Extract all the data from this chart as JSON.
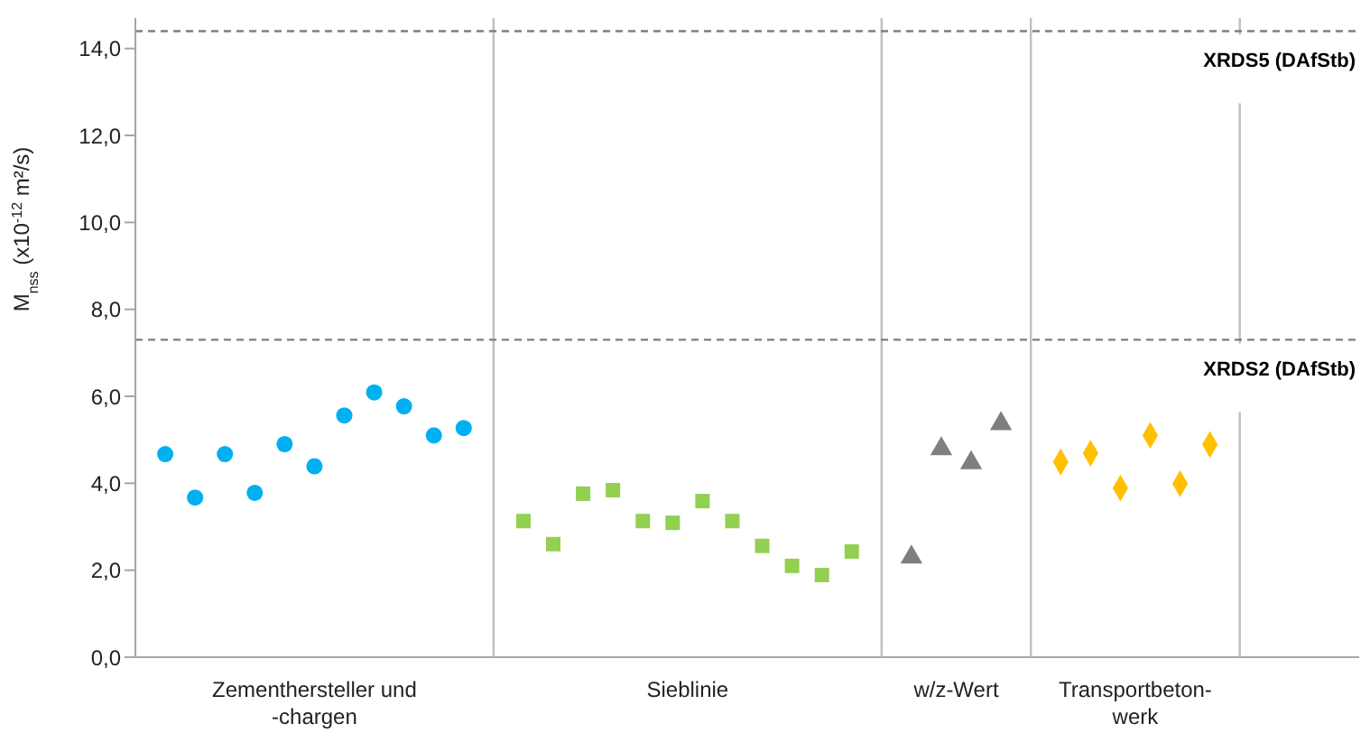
{
  "chart_data": {
    "type": "scatter",
    "ylabel": "M$_{nss}$ (x10$^{-12}$ m²/s)",
    "categories": [
      null,
      null,
      null,
      null,
      null,
      null,
      null,
      null,
      null,
      null,
      "Zementhersteller und\n-chargen",
      null,
      null,
      null,
      null,
      null,
      null,
      null,
      null,
      null,
      null,
      null,
      null,
      null,
      null,
      null,
      null,
      null,
      null,
      null,
      null,
      null,
      null,
      null,
      null,
      "Sieblinie",
      null,
      null,
      null,
      null,
      null,
      null,
      null,
      null,
      null,
      null,
      null,
      null,
      null,
      null,
      null,
      null,
      null,
      "w/z-Wert",
      null,
      null,
      null,
      null,
      null,
      null,
      null,
      null,
      null,
      null,
      null,
      "Transportbeton-\nwerk",
      null,
      null,
      null,
      null,
      null,
      null,
      null,
      null,
      null,
      null,
      null,
      null,
      null
    ],
    "ylim": [
      0,
      14.7
    ],
    "yticks": [
      {
        "value": 0,
        "label": "0,0"
      },
      {
        "value": 2,
        "label": "2,0"
      },
      {
        "value": 4,
        "label": "4,0"
      },
      {
        "value": 6,
        "label": "6,0"
      },
      {
        "value": 8,
        "label": "8,0"
      },
      {
        "value": 10,
        "label": "10,0"
      },
      {
        "value": 12,
        "label": "12,0"
      },
      {
        "value": 14,
        "label": "14,0"
      }
    ],
    "series": [
      {
        "color": "#00b0f0",
        "marker": "circle",
        "values": [
          4.67,
          null,
          3.67,
          null,
          4.67,
          null,
          3.78,
          null,
          4.9,
          null,
          4.39,
          null,
          5.56,
          null,
          6.09,
          null,
          5.77,
          null,
          5.1,
          null,
          5.27,
          null,
          null,
          null,
          null,
          null,
          null,
          null,
          null,
          null,
          null,
          null,
          null,
          null,
          null,
          null,
          null,
          null,
          null,
          null,
          null,
          null,
          null,
          null,
          null,
          null,
          null,
          null,
          null,
          null,
          null,
          null,
          null,
          null,
          null,
          null,
          null,
          null,
          null,
          null,
          null,
          null,
          null,
          null,
          null,
          null,
          null,
          null,
          null,
          null,
          null,
          null,
          null,
          null,
          null,
          null,
          null,
          null,
          null
        ]
      },
      {
        "color": "#92d050",
        "marker": "square",
        "values": [
          null,
          null,
          null,
          null,
          null,
          null,
          null,
          null,
          null,
          null,
          null,
          null,
          null,
          null,
          null,
          null,
          null,
          null,
          null,
          null,
          null,
          null,
          null,
          null,
          3.13,
          null,
          2.6,
          null,
          3.76,
          null,
          3.84,
          null,
          3.13,
          null,
          3.09,
          null,
          3.59,
          null,
          3.13,
          null,
          2.56,
          null,
          2.1,
          null,
          1.89,
          null,
          2.43,
          null,
          null,
          null,
          null,
          null,
          null,
          null,
          null,
          null,
          null,
          null,
          null,
          null,
          null,
          null,
          null,
          null,
          null,
          null,
          null,
          null,
          null,
          null,
          null,
          null,
          null,
          null,
          null,
          null,
          null,
          null,
          null
        ]
      },
      {
        "color": "#7f7f7f",
        "marker": "triangle",
        "values": [
          null,
          null,
          null,
          null,
          null,
          null,
          null,
          null,
          null,
          null,
          null,
          null,
          null,
          null,
          null,
          null,
          null,
          null,
          null,
          null,
          null,
          null,
          null,
          null,
          null,
          null,
          null,
          null,
          null,
          null,
          null,
          null,
          null,
          null,
          null,
          null,
          null,
          null,
          null,
          null,
          null,
          null,
          null,
          null,
          null,
          null,
          null,
          null,
          null,
          null,
          2.3,
          null,
          4.79,
          null,
          4.47,
          null,
          5.37,
          null,
          null,
          null,
          null,
          null,
          null,
          null,
          null,
          null,
          null,
          null,
          null,
          null,
          null,
          null,
          null,
          null,
          null,
          null,
          null,
          null,
          null
        ]
      },
      {
        "color": "#ffc000",
        "marker": "diamond",
        "values": [
          null,
          null,
          null,
          null,
          null,
          null,
          null,
          null,
          null,
          null,
          null,
          null,
          null,
          null,
          null,
          null,
          null,
          null,
          null,
          null,
          null,
          null,
          null,
          null,
          null,
          null,
          null,
          null,
          null,
          null,
          null,
          null,
          null,
          null,
          null,
          null,
          null,
          null,
          null,
          null,
          null,
          null,
          null,
          null,
          null,
          null,
          null,
          null,
          null,
          null,
          null,
          null,
          null,
          null,
          null,
          null,
          null,
          null,
          null,
          null,
          4.49,
          null,
          4.69,
          null,
          3.89,
          null,
          5.1,
          null,
          3.99,
          null,
          4.89,
          null,
          null,
          null,
          null,
          null,
          null,
          null,
          null
        ]
      }
    ],
    "ref_lines": [
      {
        "axis": "y",
        "value": 14.4,
        "label": "XRDS5 (DAfStb)",
        "color": "#7f7f7f",
        "line_style": "dashed"
      },
      {
        "axis": "y",
        "value": 7.3,
        "label": "XRDS2 (DAfStb)",
        "color": "#7f7f7f",
        "line_style": "dashed"
      }
    ]
  }
}
